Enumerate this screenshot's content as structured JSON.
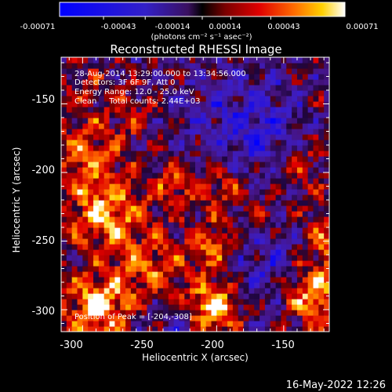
{
  "colorbar": {
    "tick_labels": [
      "-0.00071",
      "-0.00043",
      "-0.00014",
      "0.00014",
      "0.00043",
      "0.00071"
    ],
    "units": "(photons cm⁻² s⁻¹ asec⁻²)",
    "range": [
      -0.00071,
      0.00071
    ]
  },
  "info": {
    "time_range": "28-Aug-2014 13:29:00.000 to 13:34:56.000",
    "detectors": "Detectors: 3F 6F 9F, Att 0",
    "energy": "Energy Range: 12.0 - 25.0 keV",
    "clean": "Clean     Total counts: 2.44E+03",
    "peak": "Position of Peak = [-204,-308]"
  },
  "footer": {
    "timestamp": "16-May-2022 12:26"
  },
  "chart_data": {
    "type": "heatmap",
    "title": "Reconstructed RHESSI Image",
    "xlabel": "Heliocentric X (arcsec)",
    "ylabel": "Heliocentric Y (arcsec)",
    "xlim": [
      -316,
      -116
    ],
    "ylim": [
      -316,
      -116
    ],
    "x_ticks": [
      "-300",
      "-250",
      "-200",
      "-150"
    ],
    "y_ticks": [
      "-150",
      "-200",
      "-250",
      "-300"
    ],
    "peak_position": [
      -204,
      -308
    ],
    "grid": false
  }
}
